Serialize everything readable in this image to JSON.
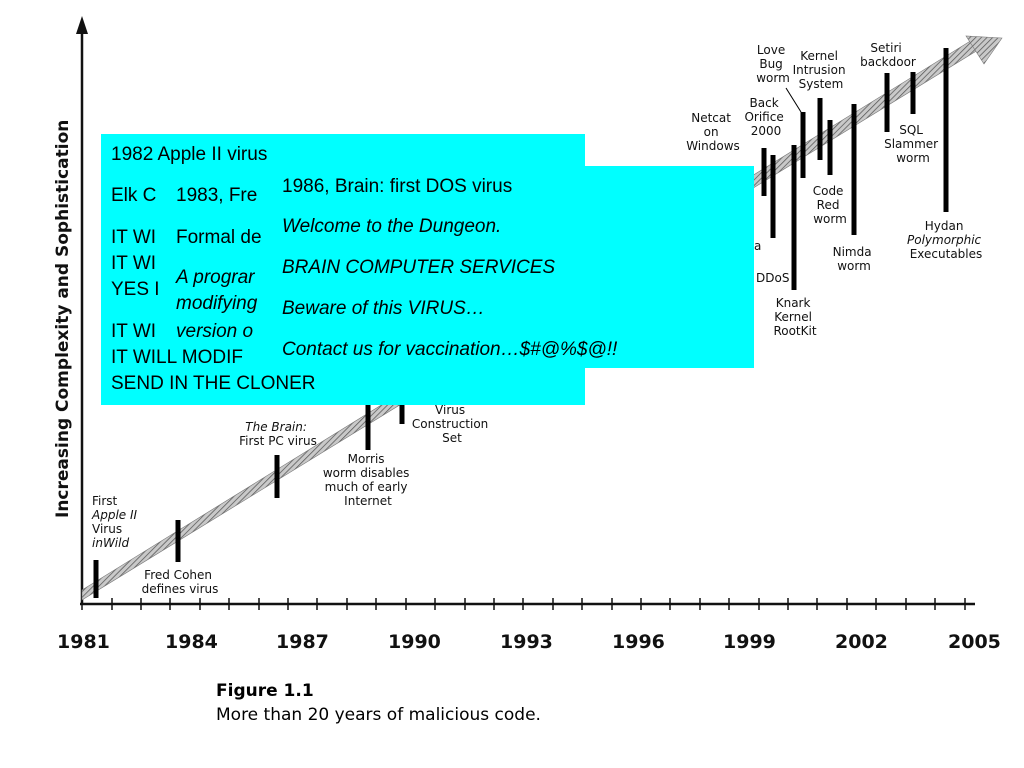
{
  "figure": {
    "y_axis_label": "Increasing Complexity and Sophistication",
    "x_ticks": [
      "1981",
      "1984",
      "1987",
      "1990",
      "1993",
      "1996",
      "1999",
      "2002",
      "2005"
    ],
    "caption_title": "Figure 1.1",
    "caption_text": "More than 20 years of malicious code.",
    "events": {
      "first_apple": [
        "First",
        "Apple II",
        "Virus",
        "inWild"
      ],
      "fred_cohen": [
        "Fred Cohen",
        "defines virus"
      ],
      "brain": [
        "The Brain:",
        "First PC virus"
      ],
      "morris": [
        "Morris",
        "worm disables",
        "much of early",
        "Internet"
      ],
      "vcs": [
        "Virus",
        "Construction",
        "Set"
      ],
      "netcat": [
        "Netcat",
        "on",
        "Windows"
      ],
      "love_bug": [
        "Love",
        "Bug",
        "worm"
      ],
      "kernel_ids": [
        "Kernel",
        "Intrusion",
        "System"
      ],
      "setiri": [
        "Setiri",
        "backdoor"
      ],
      "back_orifice": [
        "Back",
        "Orifice",
        "2000"
      ],
      "sql_slammer": [
        "SQL",
        "Slammer",
        "worm"
      ],
      "code_red": [
        "Code",
        "Red",
        "worm"
      ],
      "nimda": [
        "Nimda",
        "worm"
      ],
      "hydan": [
        "Hydan",
        "Polymorphic",
        "Executables"
      ],
      "ddos": [
        "DDoS"
      ],
      "knark": [
        "Knark",
        "Kernel",
        "RootKit"
      ],
      "partial_a": "a"
    }
  },
  "box_apple": {
    "title": "1982 Apple II virus",
    "line_elk": "Elk C",
    "line_it1": "IT WI",
    "line_it2": "IT WI",
    "line_yes": "YES I",
    "line_it3": "IT WI",
    "line_modify": "IT WILL MODIF",
    "line_cloner": "SEND IN THE CLONER"
  },
  "box_cohen": {
    "title": "1983, Fre",
    "formal": "Formal de",
    "prog1": "A prograr",
    "prog2": "modifying",
    "prog3": "version o"
  },
  "box_brain": {
    "title": "1986, Brain: first DOS virus",
    "l1": "Welcome to the Dungeon.",
    "l2": "BRAIN COMPUTER SERVICES",
    "l3": "Beware of this VIRUS…",
    "l4": "Contact us for vaccination…$#@%$@!!"
  }
}
